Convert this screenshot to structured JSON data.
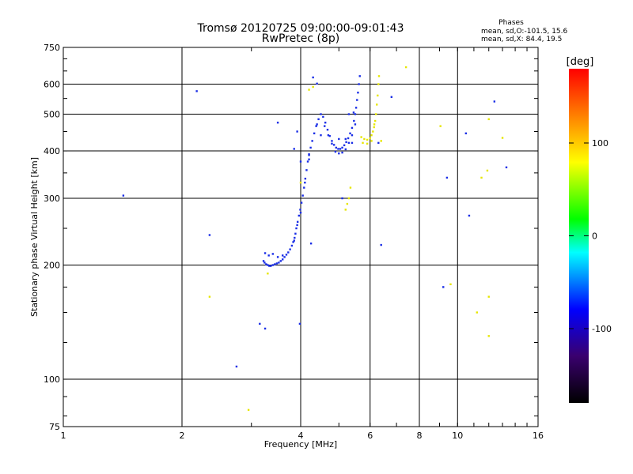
{
  "chart_data": {
    "type": "scatter",
    "title": "Tromsø 20120725 09:00:00-09:01:43",
    "subtitle": "RwPretec (8p)",
    "xlabel": "Frequency [MHz]",
    "ylabel": "Stationary phase Virtual Height [km]",
    "xscale": "log",
    "yscale": "log",
    "xlim": [
      1,
      16
    ],
    "ylim": [
      75,
      750
    ],
    "x_ticks": [
      1,
      2,
      4,
      6,
      8,
      10,
      16
    ],
    "x_tick_labels": [
      "1",
      "2",
      "4",
      "6",
      "8",
      "10",
      "16"
    ],
    "y_ticks": [
      75,
      100,
      200,
      300,
      400,
      500,
      600,
      750
    ],
    "y_tick_labels": [
      "75",
      "100",
      "200",
      "300",
      "400",
      "500",
      "600",
      "750"
    ],
    "phase_info": {
      "title": "Phases",
      "line1": "mean, sd,O:-101.5, 15.6",
      "line2": "mean, sd,X:  84.4, 19.5"
    },
    "colorbar": {
      "label": "[deg]",
      "range": [
        -180,
        180
      ],
      "ticks": [
        100,
        0,
        -100
      ],
      "tick_labels": [
        "100",
        "0",
        "-100"
      ],
      "colors": [
        "#000000",
        "#3a006e",
        "#0000ff",
        "#00ffff",
        "#00ff00",
        "#ffff00",
        "#ff8000",
        "#ff0000"
      ]
    },
    "o_trace_color": "#1a2ee6",
    "x_trace_color": "#e6e600",
    "o_trace": [
      [
        3.22,
        205
      ],
      [
        3.24,
        203
      ],
      [
        3.27,
        201
      ],
      [
        3.3,
        200
      ],
      [
        3.33,
        199
      ],
      [
        3.36,
        199
      ],
      [
        3.4,
        200
      ],
      [
        3.44,
        201
      ],
      [
        3.48,
        202
      ],
      [
        3.52,
        203
      ],
      [
        3.56,
        205
      ],
      [
        3.6,
        207
      ],
      [
        3.64,
        210
      ],
      [
        3.68,
        213
      ],
      [
        3.72,
        216
      ],
      [
        3.76,
        220
      ],
      [
        3.8,
        225
      ],
      [
        3.83,
        230
      ],
      [
        3.86,
        236
      ],
      [
        3.88,
        242
      ],
      [
        3.9,
        250
      ],
      [
        3.93,
        260
      ],
      [
        3.96,
        270
      ],
      [
        3.99,
        280
      ],
      [
        4.02,
        292
      ],
      [
        4.05,
        305
      ],
      [
        4.08,
        320
      ],
      [
        4.11,
        338
      ],
      [
        4.14,
        356
      ],
      [
        4.17,
        375
      ],
      [
        4.2,
        392
      ],
      [
        4.24,
        408
      ],
      [
        4.28,
        425
      ],
      [
        4.33,
        445
      ],
      [
        4.38,
        465
      ],
      [
        4.44,
        485
      ],
      [
        4.5,
        500
      ],
      [
        4.56,
        492
      ],
      [
        4.62,
        475
      ],
      [
        4.68,
        455
      ],
      [
        4.74,
        438
      ],
      [
        4.8,
        425
      ],
      [
        4.86,
        415
      ],
      [
        4.92,
        408
      ],
      [
        4.98,
        405
      ],
      [
        5.04,
        405
      ],
      [
        5.1,
        408
      ],
      [
        5.16,
        414
      ],
      [
        5.22,
        422
      ],
      [
        5.28,
        432
      ],
      [
        5.34,
        445
      ],
      [
        5.4,
        460
      ],
      [
        5.46,
        480
      ],
      [
        5.5,
        500
      ],
      [
        5.53,
        520
      ],
      [
        5.56,
        545
      ],
      [
        5.59,
        570
      ],
      [
        5.62,
        600
      ],
      [
        5.65,
        630
      ],
      [
        3.25,
        215
      ],
      [
        3.32,
        212
      ],
      [
        3.4,
        214
      ],
      [
        3.5,
        210
      ],
      [
        3.6,
        212
      ],
      [
        3.85,
        232
      ],
      [
        3.92,
        255
      ],
      [
        4.0,
        275
      ],
      [
        4.1,
        330
      ],
      [
        4.2,
        380
      ],
      [
        4.6,
        465
      ],
      [
        4.7,
        440
      ],
      [
        4.8,
        418
      ],
      [
        4.9,
        398
      ],
      [
        5.0,
        394
      ],
      [
        5.1,
        396
      ],
      [
        5.2,
        404
      ],
      [
        5.3,
        420
      ],
      [
        5.4,
        440
      ],
      [
        5.5,
        470
      ],
      [
        5.0,
        430
      ],
      [
        5.2,
        430
      ],
      [
        5.4,
        420
      ],
      [
        5.3,
        500
      ],
      [
        5.45,
        505
      ],
      [
        4.4,
        470
      ],
      [
        4.5,
        440
      ],
      [
        5.1,
        300
      ],
      [
        1.42,
        305
      ],
      [
        2.18,
        575
      ],
      [
        2.35,
        240
      ],
      [
        2.75,
        108
      ],
      [
        3.15,
        140
      ],
      [
        3.25,
        136
      ],
      [
        3.5,
        475
      ],
      [
        3.85,
        405
      ],
      [
        3.92,
        450
      ],
      [
        3.98,
        140
      ],
      [
        4.0,
        375
      ],
      [
        4.2,
        390
      ],
      [
        4.25,
        228
      ],
      [
        4.3,
        625
      ],
      [
        4.4,
        602
      ],
      [
        6.3,
        420
      ],
      [
        6.4,
        226
      ],
      [
        6.8,
        555
      ],
      [
        9.4,
        340
      ],
      [
        10.5,
        445
      ],
      [
        10.7,
        270
      ],
      [
        9.2,
        175
      ],
      [
        13.3,
        362
      ],
      [
        12.4,
        540
      ]
    ],
    "x_trace": [
      [
        5.7,
        435
      ],
      [
        5.8,
        430
      ],
      [
        5.9,
        428
      ],
      [
        6.0,
        432
      ],
      [
        6.05,
        440
      ],
      [
        6.1,
        450
      ],
      [
        6.14,
        462
      ],
      [
        6.18,
        480
      ],
      [
        6.21,
        500
      ],
      [
        6.24,
        530
      ],
      [
        6.27,
        560
      ],
      [
        6.3,
        600
      ],
      [
        6.32,
        630
      ],
      [
        5.75,
        420
      ],
      [
        5.9,
        418
      ],
      [
        6.05,
        425
      ],
      [
        6.15,
        470
      ],
      [
        5.2,
        280
      ],
      [
        5.25,
        290
      ],
      [
        5.3,
        300
      ],
      [
        5.35,
        320
      ],
      [
        4.2,
        580
      ],
      [
        4.3,
        590
      ],
      [
        3.3,
        190
      ],
      [
        2.35,
        165
      ],
      [
        2.95,
        83
      ],
      [
        4.0,
        330
      ],
      [
        6.4,
        425
      ],
      [
        7.4,
        665
      ],
      [
        12.0,
        485
      ],
      [
        11.5,
        340
      ],
      [
        11.9,
        355
      ],
      [
        12.0,
        165
      ],
      [
        11.2,
        150
      ],
      [
        12.0,
        130
      ],
      [
        9.6,
        178
      ],
      [
        13.0,
        433
      ],
      [
        9.05,
        465
      ]
    ]
  }
}
